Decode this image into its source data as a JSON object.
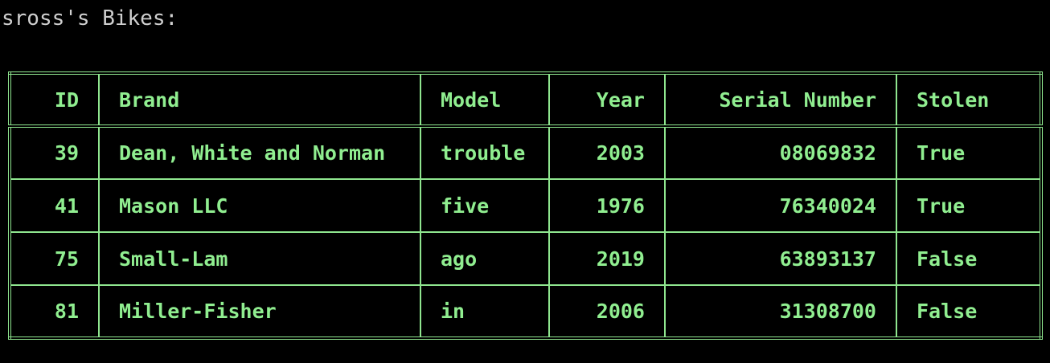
{
  "terminal": {
    "heading": "sross's Bikes:"
  },
  "table": {
    "headers": {
      "id": "ID",
      "brand": "Brand",
      "model": "Model",
      "year": "Year",
      "serial": "Serial Number",
      "stolen": "Stolen"
    },
    "rows": [
      {
        "id": "39",
        "brand": "Dean, White and Norman",
        "model": "trouble",
        "year": "2003",
        "serial": "08069832",
        "stolen": "True"
      },
      {
        "id": "41",
        "brand": "Mason LLC",
        "model": "five",
        "year": "1976",
        "serial": "76340024",
        "stolen": "True"
      },
      {
        "id": "75",
        "brand": "Small-Lam",
        "model": "ago",
        "year": "2019",
        "serial": "63893137",
        "stolen": "False"
      },
      {
        "id": "81",
        "brand": "Miller-Fisher",
        "model": "in",
        "year": "2006",
        "serial": "31308700",
        "stolen": "False"
      }
    ]
  },
  "colors": {
    "background": "#000000",
    "text_heading": "#cfcfcf",
    "table_text": "#90ee90",
    "table_border": "#8fe68f"
  }
}
